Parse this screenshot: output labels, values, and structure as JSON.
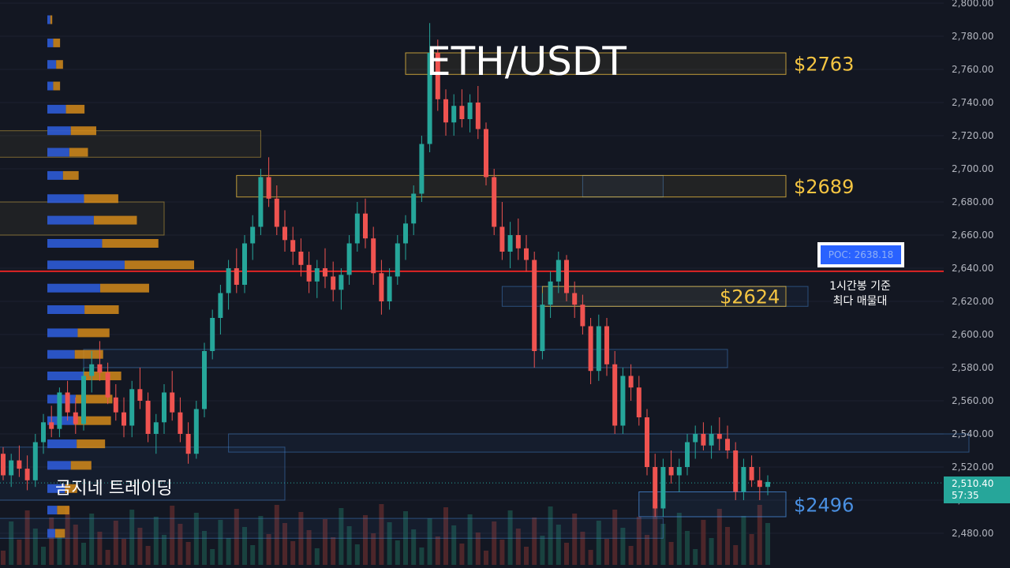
{
  "title": "ETH/USDT",
  "watermark": "곰지네 트레이딩",
  "colors": {
    "background": "#131722",
    "up": "#26a69a",
    "down": "#ef5350",
    "gold": "#f5c542",
    "blue": "#4a90e2",
    "poc_line": "#e02424",
    "vp_blue": "#2e5bd6",
    "vp_orange": "#d48a1a"
  },
  "chart_data": {
    "type": "candlestick",
    "title": "ETH/USDT",
    "ylim": [
      2466,
      2800
    ],
    "y_ticks": [
      2480,
      2500,
      2520,
      2540,
      2560,
      2580,
      2600,
      2620,
      2640,
      2660,
      2680,
      2700,
      2720,
      2740,
      2760,
      2780,
      2800
    ],
    "current_price": {
      "price": "2,510.40",
      "countdown": "57:35",
      "value": 2510.4
    },
    "poc": {
      "label": "POC: 2638.18",
      "value": 2638.18,
      "note_line1": "1시간봉 기준",
      "note_line2": "최다 매물대"
    },
    "levels": [
      {
        "label": "$2763",
        "low": 2757,
        "high": 2770,
        "color": "gold"
      },
      {
        "label": "$2689",
        "low": 2683,
        "high": 2696,
        "color": "gold"
      },
      {
        "label": "$2624",
        "low": 2617,
        "high": 2629,
        "color": "gold"
      },
      {
        "label": "$2496",
        "low": 2490,
        "high": 2505,
        "color": "blue"
      }
    ],
    "candles": [
      [
        2528,
        2532,
        2512,
        2515
      ],
      [
        2515,
        2528,
        2508,
        2524
      ],
      [
        2524,
        2533,
        2514,
        2519
      ],
      [
        2519,
        2527,
        2506,
        2512
      ],
      [
        2512,
        2540,
        2508,
        2535
      ],
      [
        2535,
        2552,
        2528,
        2547
      ],
      [
        2547,
        2557,
        2538,
        2543
      ],
      [
        2543,
        2568,
        2538,
        2565
      ],
      [
        2565,
        2572,
        2548,
        2553
      ],
      [
        2553,
        2562,
        2540,
        2546
      ],
      [
        2546,
        2580,
        2542,
        2575
      ],
      [
        2575,
        2590,
        2565,
        2582
      ],
      [
        2582,
        2596,
        2572,
        2577
      ],
      [
        2577,
        2583,
        2558,
        2562
      ],
      [
        2562,
        2570,
        2548,
        2553
      ],
      [
        2553,
        2562,
        2538,
        2545
      ],
      [
        2545,
        2572,
        2538,
        2567
      ],
      [
        2567,
        2580,
        2555,
        2560
      ],
      [
        2560,
        2565,
        2535,
        2540
      ],
      [
        2540,
        2552,
        2528,
        2547
      ],
      [
        2547,
        2570,
        2540,
        2565
      ],
      [
        2565,
        2578,
        2548,
        2553
      ],
      [
        2553,
        2562,
        2535,
        2540
      ],
      [
        2540,
        2547,
        2522,
        2528
      ],
      [
        2528,
        2560,
        2525,
        2555
      ],
      [
        2555,
        2595,
        2550,
        2590
      ],
      [
        2590,
        2615,
        2585,
        2610
      ],
      [
        2610,
        2630,
        2600,
        2625
      ],
      [
        2625,
        2645,
        2615,
        2640
      ],
      [
        2640,
        2652,
        2625,
        2630
      ],
      [
        2630,
        2660,
        2625,
        2655
      ],
      [
        2655,
        2672,
        2645,
        2665
      ],
      [
        2665,
        2700,
        2660,
        2695
      ],
      [
        2695,
        2707,
        2677,
        2682
      ],
      [
        2682,
        2690,
        2660,
        2665
      ],
      [
        2665,
        2675,
        2650,
        2657
      ],
      [
        2657,
        2665,
        2642,
        2650
      ],
      [
        2650,
        2658,
        2635,
        2642
      ],
      [
        2642,
        2650,
        2625,
        2632
      ],
      [
        2632,
        2645,
        2622,
        2640
      ],
      [
        2640,
        2652,
        2628,
        2635
      ],
      [
        2635,
        2644,
        2620,
        2627
      ],
      [
        2627,
        2640,
        2615,
        2636
      ],
      [
        2636,
        2660,
        2630,
        2655
      ],
      [
        2655,
        2680,
        2650,
        2673
      ],
      [
        2673,
        2682,
        2652,
        2658
      ],
      [
        2658,
        2665,
        2630,
        2637
      ],
      [
        2637,
        2645,
        2612,
        2620
      ],
      [
        2620,
        2640,
        2615,
        2635
      ],
      [
        2635,
        2660,
        2630,
        2655
      ],
      [
        2655,
        2672,
        2645,
        2667
      ],
      [
        2667,
        2690,
        2660,
        2685
      ],
      [
        2685,
        2720,
        2680,
        2715
      ],
      [
        2715,
        2788,
        2710,
        2770
      ],
      [
        2770,
        2778,
        2735,
        2742
      ],
      [
        2742,
        2748,
        2720,
        2728
      ],
      [
        2728,
        2745,
        2720,
        2738
      ],
      [
        2738,
        2748,
        2725,
        2730
      ],
      [
        2730,
        2745,
        2722,
        2740
      ],
      [
        2740,
        2750,
        2718,
        2724
      ],
      [
        2724,
        2728,
        2690,
        2695
      ],
      [
        2695,
        2700,
        2660,
        2665
      ],
      [
        2665,
        2680,
        2645,
        2650
      ],
      [
        2650,
        2668,
        2640,
        2660
      ],
      [
        2660,
        2670,
        2645,
        2652
      ],
      [
        2652,
        2660,
        2638,
        2645
      ],
      [
        2645,
        2650,
        2580,
        2590
      ],
      [
        2590,
        2625,
        2585,
        2618
      ],
      [
        2618,
        2638,
        2610,
        2632
      ],
      [
        2632,
        2650,
        2625,
        2645
      ],
      [
        2645,
        2648,
        2620,
        2625
      ],
      [
        2625,
        2632,
        2610,
        2618
      ],
      [
        2618,
        2624,
        2600,
        2605
      ],
      [
        2605,
        2610,
        2570,
        2578
      ],
      [
        2578,
        2612,
        2572,
        2605
      ],
      [
        2605,
        2610,
        2575,
        2582
      ],
      [
        2582,
        2590,
        2540,
        2545
      ],
      [
        2545,
        2580,
        2540,
        2575
      ],
      [
        2575,
        2582,
        2560,
        2568
      ],
      [
        2568,
        2575,
        2545,
        2550
      ],
      [
        2550,
        2555,
        2515,
        2520
      ],
      [
        2520,
        2528,
        2490,
        2495
      ],
      [
        2495,
        2525,
        2490,
        2520
      ],
      [
        2520,
        2530,
        2510,
        2515
      ],
      [
        2515,
        2525,
        2505,
        2520
      ],
      [
        2520,
        2540,
        2515,
        2535
      ],
      [
        2535,
        2545,
        2525,
        2540
      ],
      [
        2540,
        2547,
        2530,
        2533
      ],
      [
        2533,
        2545,
        2525,
        2540
      ],
      [
        2540,
        2550,
        2530,
        2537
      ],
      [
        2537,
        2545,
        2525,
        2530
      ],
      [
        2530,
        2535,
        2500,
        2505
      ],
      [
        2505,
        2525,
        2500,
        2520
      ],
      [
        2520,
        2527,
        2508,
        2512
      ],
      [
        2512,
        2520,
        2500,
        2508
      ],
      [
        2508,
        2515,
        2503,
        2511
      ]
    ],
    "volume_profile": [
      {
        "price": 2790,
        "buy": 6,
        "sell": 4
      },
      {
        "price": 2776,
        "buy": 12,
        "sell": 14
      },
      {
        "price": 2763,
        "buy": 18,
        "sell": 14
      },
      {
        "price": 2750,
        "buy": 12,
        "sell": 14
      },
      {
        "price": 2736,
        "buy": 38,
        "sell": 38
      },
      {
        "price": 2723,
        "buy": 48,
        "sell": 52
      },
      {
        "price": 2710,
        "buy": 45,
        "sell": 38
      },
      {
        "price": 2696,
        "buy": 32,
        "sell": 32
      },
      {
        "price": 2682,
        "buy": 75,
        "sell": 70
      },
      {
        "price": 2669,
        "buy": 95,
        "sell": 88
      },
      {
        "price": 2655,
        "buy": 112,
        "sell": 115
      },
      {
        "price": 2642,
        "buy": 158,
        "sell": 142
      },
      {
        "price": 2628,
        "buy": 108,
        "sell": 100
      },
      {
        "price": 2615,
        "buy": 76,
        "sell": 70
      },
      {
        "price": 2601,
        "buy": 62,
        "sell": 65
      },
      {
        "price": 2588,
        "buy": 56,
        "sell": 58
      },
      {
        "price": 2575,
        "buy": 75,
        "sell": 76
      },
      {
        "price": 2561,
        "buy": 58,
        "sell": 75
      },
      {
        "price": 2548,
        "buy": 55,
        "sell": 75
      },
      {
        "price": 2534,
        "buy": 60,
        "sell": 58
      },
      {
        "price": 2521,
        "buy": 48,
        "sell": 42
      },
      {
        "price": 2507,
        "buy": 36,
        "sell": 25
      },
      {
        "price": 2494,
        "buy": 20,
        "sell": 25
      },
      {
        "price": 2480,
        "buy": 16,
        "sell": 20
      }
    ],
    "background_zones": [
      {
        "low": 2707,
        "high": 2723,
        "from": -20,
        "to": 32,
        "color": "gold"
      },
      {
        "low": 2660,
        "high": 2680,
        "from": -20,
        "to": 20,
        "color": "gold"
      },
      {
        "low": 2580,
        "high": 2591,
        "from": 10,
        "to": 90,
        "color": "blue"
      },
      {
        "low": 2500,
        "high": 2532,
        "from": -2,
        "to": 35,
        "color": "blue"
      },
      {
        "low": 2477,
        "high": 2489,
        "from": -5,
        "to": 82,
        "color": "blue"
      },
      {
        "low": 2459,
        "high": 2476,
        "from": -10,
        "to": -2,
        "color": "blue"
      },
      {
        "low": 2529,
        "high": 2540,
        "from": 28,
        "to": 120,
        "color": "blue"
      },
      {
        "low": 2617,
        "high": 2629,
        "from": 62,
        "to": 100,
        "color": "blue"
      },
      {
        "low": 2683,
        "high": 2696,
        "from": 72,
        "to": 82,
        "color": "blue"
      }
    ]
  }
}
